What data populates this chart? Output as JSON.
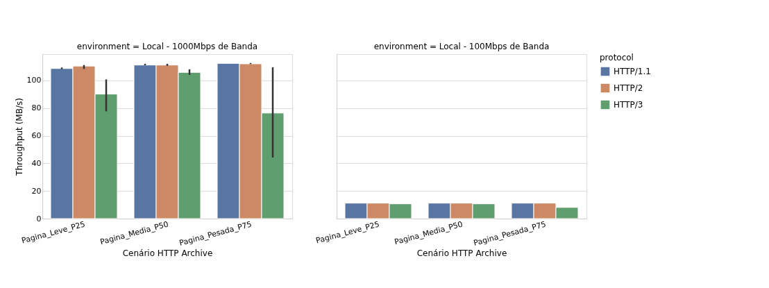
{
  "chart_data": [
    {
      "type": "bar",
      "title": "environment = Local - 1000Mbps de Banda",
      "xlabel": "Cenário HTTP Archive",
      "ylabel": "Throughput (MB/s)",
      "categories": [
        "Pagina_Leve_P25",
        "Pagina_Media_P50",
        "Pagina_Pesada_P75"
      ],
      "ylim": [
        0,
        119
      ],
      "yticks": [
        0,
        20,
        40,
        60,
        80,
        100
      ],
      "grid": "y",
      "legend": "right",
      "series": [
        {
          "name": "HTTP/1.1",
          "color": "#5875a4",
          "values": [
            108.6,
            111.1,
            112.3
          ],
          "errors": [
            [
              108.1,
              109.3
            ],
            [
              110.9,
              112.0
            ],
            null
          ]
        },
        {
          "name": "HTTP/2",
          "color": "#cc8963",
          "values": [
            110.4,
            111.1,
            112.0
          ],
          "errors": [
            [
              108.3,
              111.1
            ],
            [
              110.5,
              112.0
            ],
            [
              111.8,
              112.6
            ]
          ]
        },
        {
          "name": "HTTP/3",
          "color": "#5f9e6e",
          "values": [
            90.1,
            105.8,
            76.4
          ],
          "errors": [
            [
              77.6,
              100.7
            ],
            [
              104.0,
              108.0
            ],
            [
              44.2,
              109.5
            ]
          ]
        }
      ]
    },
    {
      "type": "bar",
      "title": "environment = Local - 100Mbps de Banda",
      "xlabel": "Cenário HTTP Archive",
      "legend_title": "protocol",
      "categories": [
        "Pagina_Leve_P25",
        "Pagina_Media_P50",
        "Pagina_Pesada_P75"
      ],
      "ylim": [
        0,
        119
      ],
      "yticks": [
        0,
        20,
        40,
        60,
        80,
        100
      ],
      "grid": "y",
      "legend": "right",
      "tick_labels": "x",
      "series": [
        {
          "name": "HTTP/1.1",
          "color": "#5875a4",
          "values": [
            11.2,
            11.2,
            11.2
          ]
        },
        {
          "name": "HTTP/2",
          "color": "#cc8963",
          "values": [
            11.2,
            11.2,
            11.2
          ]
        },
        {
          "name": "HTTP/3",
          "color": "#5f9e6e",
          "values": [
            10.7,
            10.7,
            8.1
          ]
        }
      ]
    }
  ]
}
